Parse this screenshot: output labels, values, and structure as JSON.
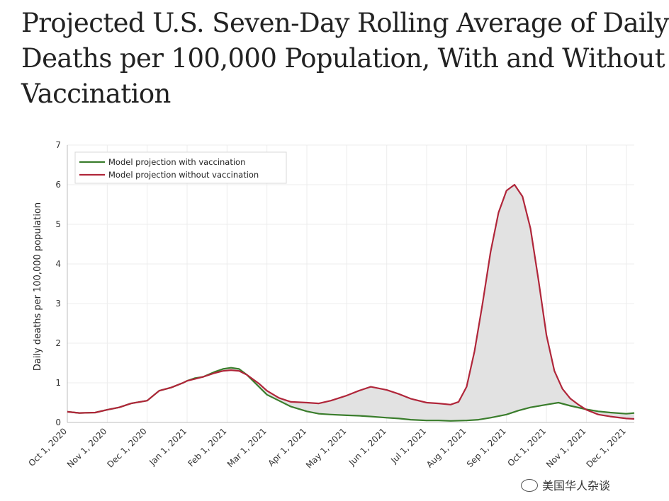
{
  "title_lines": [
    "Projected U.S. Seven-Day Rolling Average of Daily",
    "Deaths per 100,000 Population, With and Without",
    "Vaccination"
  ],
  "watermark": "美国华人杂谈",
  "chart_data": {
    "type": "line",
    "title": "Projected U.S. Seven-Day Rolling Average of Daily Deaths per 100,000 Population, With and Without Vaccination",
    "xlabel": "",
    "ylabel": "Daily deaths per 100,000 population",
    "ylim": [
      0,
      7
    ],
    "yticks": [
      0,
      1,
      2,
      3,
      4,
      5,
      6,
      7
    ],
    "xticks": [
      "Oct 1, 2020",
      "Nov 1, 2020",
      "Dec 1, 2020",
      "Jan 1, 2021",
      "Feb 1, 2021",
      "Mar 1, 2021",
      "Apr 1, 2021",
      "May 1, 2021",
      "Jun 1, 2021",
      "Jul 1, 2021",
      "Aug 1, 2021",
      "Sep 1, 2021",
      "Oct 1, 2021",
      "Nov 1, 2021",
      "Dec 1, 2021"
    ],
    "xlim_months": [
      0,
      14.2
    ],
    "grid": true,
    "legend_position": "top-left",
    "shaded_between_series": true,
    "series": [
      {
        "name": "Model projection with vaccination",
        "color": "#3a7d2c",
        "x": [
          0,
          0.3,
          0.7,
          1.0,
          1.3,
          1.6,
          2.0,
          2.3,
          2.6,
          2.9,
          3.0,
          3.2,
          3.4,
          3.7,
          3.9,
          4.1,
          4.3,
          4.5,
          4.8,
          5.0,
          5.3,
          5.6,
          6.0,
          6.3,
          6.6,
          7.0,
          7.3,
          7.6,
          8.0,
          8.3,
          8.6,
          9.0,
          9.3,
          9.6,
          10.0,
          10.3,
          10.6,
          11.0,
          11.3,
          11.6,
          12.0,
          12.3,
          12.6,
          13.0,
          13.3,
          13.6,
          14.0,
          14.2
        ],
        "values": [
          0.27,
          0.24,
          0.25,
          0.32,
          0.38,
          0.48,
          0.55,
          0.8,
          0.88,
          1.0,
          1.05,
          1.12,
          1.15,
          1.28,
          1.35,
          1.38,
          1.35,
          1.2,
          0.9,
          0.7,
          0.55,
          0.4,
          0.28,
          0.22,
          0.2,
          0.18,
          0.17,
          0.15,
          0.12,
          0.1,
          0.07,
          0.05,
          0.05,
          0.04,
          0.05,
          0.07,
          0.12,
          0.2,
          0.3,
          0.38,
          0.45,
          0.5,
          0.42,
          0.33,
          0.28,
          0.25,
          0.22,
          0.24
        ]
      },
      {
        "name": "Model projection without vaccination",
        "color": "#b0263a",
        "x": [
          0,
          0.3,
          0.7,
          1.0,
          1.3,
          1.6,
          2.0,
          2.3,
          2.6,
          2.9,
          3.0,
          3.2,
          3.4,
          3.7,
          3.9,
          4.1,
          4.3,
          4.5,
          4.8,
          5.0,
          5.3,
          5.6,
          6.0,
          6.3,
          6.6,
          7.0,
          7.3,
          7.6,
          8.0,
          8.3,
          8.6,
          9.0,
          9.3,
          9.6,
          9.8,
          10.0,
          10.2,
          10.4,
          10.6,
          10.8,
          11.0,
          11.2,
          11.4,
          11.6,
          11.8,
          12.0,
          12.2,
          12.4,
          12.6,
          12.8,
          13.0,
          13.3,
          13.6,
          14.0,
          14.2
        ],
        "values": [
          0.27,
          0.24,
          0.25,
          0.32,
          0.38,
          0.48,
          0.55,
          0.8,
          0.88,
          1.0,
          1.05,
          1.1,
          1.15,
          1.25,
          1.3,
          1.32,
          1.3,
          1.2,
          0.98,
          0.8,
          0.62,
          0.52,
          0.5,
          0.48,
          0.55,
          0.68,
          0.8,
          0.9,
          0.82,
          0.72,
          0.6,
          0.5,
          0.48,
          0.45,
          0.52,
          0.9,
          1.8,
          3.0,
          4.3,
          5.3,
          5.85,
          6.0,
          5.7,
          4.9,
          3.6,
          2.2,
          1.3,
          0.85,
          0.6,
          0.45,
          0.32,
          0.2,
          0.15,
          0.1,
          0.09
        ]
      }
    ]
  }
}
